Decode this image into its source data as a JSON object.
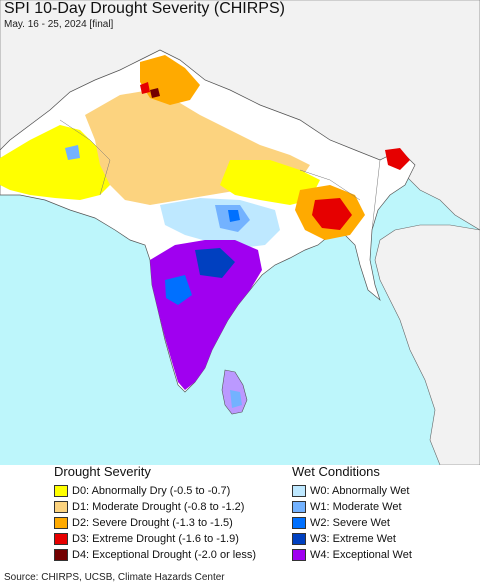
{
  "header": {
    "title": "SPI 10-Day Drought Severity (CHIRPS)",
    "subtitle": "May. 16 - 25, 2024 [final]"
  },
  "legend": {
    "drought": {
      "heading": "Drought Severity",
      "items": [
        {
          "label": "D0: Abnormally Dry (-0.5 to -0.7)",
          "color": "#ffff00"
        },
        {
          "label": "D1: Moderate Drought (-0.8 to -1.2)",
          "color": "#fcd37f"
        },
        {
          "label": "D2: Severe Drought (-1.3 to -1.5)",
          "color": "#ffaa00"
        },
        {
          "label": "D3: Extreme Drought (-1.6 to -1.9)",
          "color": "#e60000"
        },
        {
          "label": "D4: Exceptional Drought (-2.0 or less)",
          "color": "#730000"
        }
      ]
    },
    "wet": {
      "heading": "Wet Conditions",
      "items": [
        {
          "label": "W0: Abnormally Wet",
          "color": "#bee8ff"
        },
        {
          "label": "W1: Moderate Wet",
          "color": "#73b2ff"
        },
        {
          "label": "W2: Severe Wet",
          "color": "#0070ff"
        },
        {
          "label": "W3: Extreme Wet",
          "color": "#0040c0"
        },
        {
          "label": "W4: Exceptional Wet",
          "color": "#a000f0"
        }
      ]
    }
  },
  "map": {
    "ocean_color": "#bdf6fb",
    "land_color": "#ffffff",
    "outside_color": "#f2f2f2"
  },
  "footer": {
    "source": "Source: CHIRPS, UCSB, Climate Hazards Center"
  }
}
